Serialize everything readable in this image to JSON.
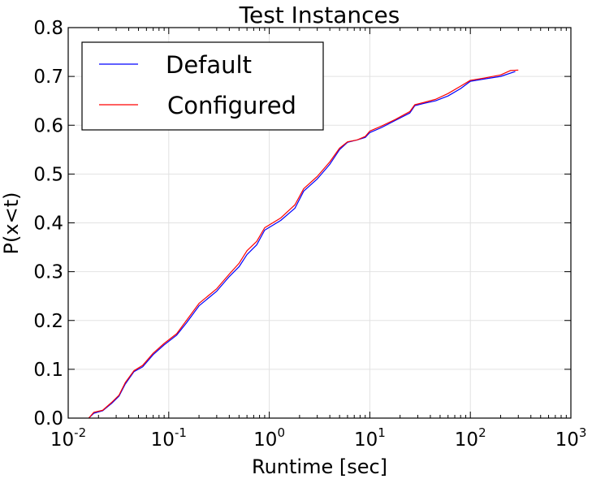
{
  "chart_data": {
    "type": "line",
    "title": "Test Instances",
    "xlabel": "Runtime [sec]",
    "ylabel": "P(x<t)",
    "x_scale": "log",
    "xlim": [
      0.01,
      1000
    ],
    "ylim": [
      0.0,
      0.8
    ],
    "x_ticks": [
      {
        "value": 0.01,
        "base": "10",
        "exp": "-2"
      },
      {
        "value": 0.1,
        "base": "10",
        "exp": "-1"
      },
      {
        "value": 1,
        "base": "10",
        "exp": "0"
      },
      {
        "value": 10,
        "base": "10",
        "exp": "1"
      },
      {
        "value": 100,
        "base": "10",
        "exp": "2"
      },
      {
        "value": 1000,
        "base": "10",
        "exp": "3"
      }
    ],
    "y_ticks": [
      "0.0",
      "0.1",
      "0.2",
      "0.3",
      "0.4",
      "0.5",
      "0.6",
      "0.7",
      "0.8"
    ],
    "grid": true,
    "legend_position": "top-left",
    "series": [
      {
        "name": "Default",
        "color": "#0000ff",
        "points": [
          [
            0.016,
            0.0
          ],
          [
            0.018,
            0.01
          ],
          [
            0.022,
            0.015
          ],
          [
            0.027,
            0.03
          ],
          [
            0.032,
            0.045
          ],
          [
            0.037,
            0.07
          ],
          [
            0.045,
            0.095
          ],
          [
            0.055,
            0.105
          ],
          [
            0.07,
            0.13
          ],
          [
            0.09,
            0.15
          ],
          [
            0.12,
            0.17
          ],
          [
            0.15,
            0.195
          ],
          [
            0.2,
            0.23
          ],
          [
            0.3,
            0.26
          ],
          [
            0.4,
            0.29
          ],
          [
            0.5,
            0.31
          ],
          [
            0.6,
            0.335
          ],
          [
            0.75,
            0.355
          ],
          [
            0.9,
            0.385
          ],
          [
            1.3,
            0.405
          ],
          [
            1.8,
            0.43
          ],
          [
            2.2,
            0.465
          ],
          [
            3.0,
            0.49
          ],
          [
            4.0,
            0.52
          ],
          [
            5.0,
            0.55
          ],
          [
            6.0,
            0.565
          ],
          [
            7.5,
            0.57
          ],
          [
            9.0,
            0.575
          ],
          [
            10.0,
            0.585
          ],
          [
            13.0,
            0.595
          ],
          [
            18.0,
            0.61
          ],
          [
            25.0,
            0.625
          ],
          [
            28.0,
            0.64
          ],
          [
            35.0,
            0.645
          ],
          [
            45.0,
            0.65
          ],
          [
            60.0,
            0.66
          ],
          [
            80.0,
            0.675
          ],
          [
            100.0,
            0.69
          ],
          [
            140.0,
            0.695
          ],
          [
            200.0,
            0.7
          ],
          [
            280.0,
            0.71
          ]
        ]
      },
      {
        "name": "Configured",
        "color": "#ff0000",
        "points": [
          [
            0.016,
            0.0
          ],
          [
            0.018,
            0.012
          ],
          [
            0.022,
            0.016
          ],
          [
            0.027,
            0.032
          ],
          [
            0.032,
            0.047
          ],
          [
            0.037,
            0.073
          ],
          [
            0.045,
            0.097
          ],
          [
            0.055,
            0.108
          ],
          [
            0.07,
            0.133
          ],
          [
            0.09,
            0.153
          ],
          [
            0.12,
            0.173
          ],
          [
            0.15,
            0.2
          ],
          [
            0.2,
            0.235
          ],
          [
            0.3,
            0.265
          ],
          [
            0.4,
            0.295
          ],
          [
            0.5,
            0.317
          ],
          [
            0.6,
            0.343
          ],
          [
            0.75,
            0.362
          ],
          [
            0.9,
            0.39
          ],
          [
            1.3,
            0.41
          ],
          [
            1.8,
            0.437
          ],
          [
            2.2,
            0.47
          ],
          [
            3.0,
            0.495
          ],
          [
            4.0,
            0.525
          ],
          [
            5.0,
            0.553
          ],
          [
            6.0,
            0.566
          ],
          [
            7.5,
            0.57
          ],
          [
            9.0,
            0.577
          ],
          [
            10.0,
            0.588
          ],
          [
            13.0,
            0.598
          ],
          [
            18.0,
            0.612
          ],
          [
            25.0,
            0.628
          ],
          [
            28.0,
            0.642
          ],
          [
            35.0,
            0.647
          ],
          [
            45.0,
            0.653
          ],
          [
            60.0,
            0.665
          ],
          [
            80.0,
            0.68
          ],
          [
            100.0,
            0.692
          ],
          [
            140.0,
            0.697
          ],
          [
            200.0,
            0.703
          ],
          [
            250.0,
            0.712
          ],
          [
            300.0,
            0.713
          ]
        ]
      }
    ]
  }
}
